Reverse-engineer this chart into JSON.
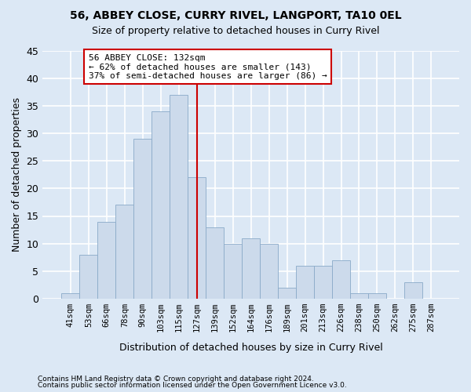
{
  "title1": "56, ABBEY CLOSE, CURRY RIVEL, LANGPORT, TA10 0EL",
  "title2": "Size of property relative to detached houses in Curry Rivel",
  "xlabel": "Distribution of detached houses by size in Curry Rivel",
  "ylabel": "Number of detached properties",
  "footer1": "Contains HM Land Registry data © Crown copyright and database right 2024.",
  "footer2": "Contains public sector information licensed under the Open Government Licence v3.0.",
  "bin_labels": [
    "41sqm",
    "53sqm",
    "66sqm",
    "78sqm",
    "90sqm",
    "103sqm",
    "115sqm",
    "127sqm",
    "139sqm",
    "152sqm",
    "164sqm",
    "176sqm",
    "189sqm",
    "201sqm",
    "213sqm",
    "226sqm",
    "238sqm",
    "250sqm",
    "262sqm",
    "275sqm",
    "287sqm"
  ],
  "bar_values": [
    1,
    8,
    14,
    17,
    29,
    34,
    37,
    22,
    13,
    10,
    11,
    10,
    2,
    6,
    6,
    7,
    1,
    1,
    0,
    3,
    0
  ],
  "bar_color": "#ccdaeb",
  "bar_edge_color": "#8aaac8",
  "vline_x": 7,
  "vline_color": "#cc0000",
  "annotation_text": "56 ABBEY CLOSE: 132sqm\n← 62% of detached houses are smaller (143)\n37% of semi-detached houses are larger (86) →",
  "annotation_box_color": "white",
  "annotation_box_edge_color": "#cc0000",
  "ylim": [
    0,
    45
  ],
  "yticks": [
    0,
    5,
    10,
    15,
    20,
    25,
    30,
    35,
    40,
    45
  ],
  "bg_color": "#dce8f5",
  "grid_color": "white"
}
